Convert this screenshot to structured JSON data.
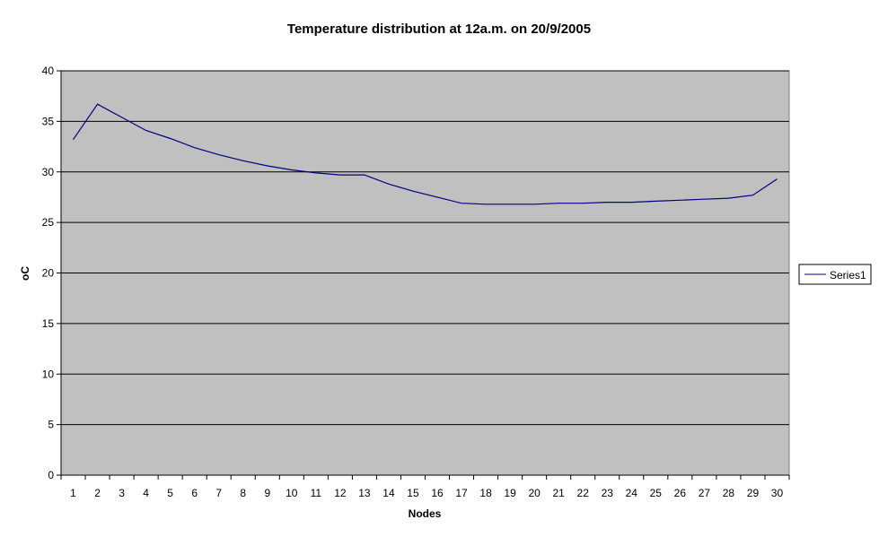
{
  "chart_data": {
    "type": "line",
    "title": "Temperature distribution at 12a.m. on 20/9/2005",
    "xlabel": "Nodes",
    "ylabel": "oC",
    "categories": [
      "1",
      "2",
      "3",
      "4",
      "5",
      "6",
      "7",
      "8",
      "9",
      "10",
      "11",
      "12",
      "13",
      "14",
      "15",
      "16",
      "17",
      "18",
      "19",
      "20",
      "21",
      "22",
      "23",
      "24",
      "25",
      "26",
      "27",
      "28",
      "29",
      "30"
    ],
    "series": [
      {
        "name": "Series1",
        "color": "#000080",
        "values": [
          33.2,
          36.7,
          35.4,
          34.1,
          33.3,
          32.4,
          31.7,
          31.1,
          30.6,
          30.2,
          29.9,
          29.7,
          29.7,
          28.8,
          28.1,
          27.5,
          26.9,
          26.8,
          26.8,
          26.8,
          26.9,
          26.9,
          27.0,
          27.0,
          27.1,
          27.2,
          27.3,
          27.4,
          27.7,
          29.3
        ]
      }
    ],
    "ylim": [
      0,
      40
    ],
    "yticks": [
      0,
      5,
      10,
      15,
      20,
      25,
      30,
      35,
      40
    ],
    "grid": true,
    "plot_background": "#c0c0c0",
    "legend_position": "right"
  }
}
